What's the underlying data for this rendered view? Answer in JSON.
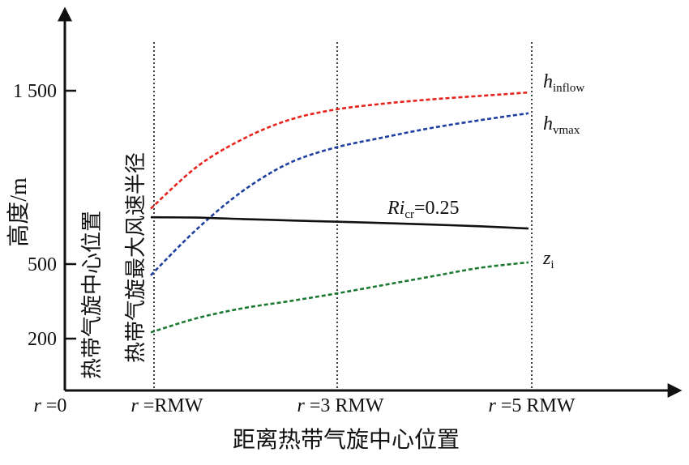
{
  "chart_data": {
    "type": "line",
    "ylabel": "高度/m",
    "xlabel": "距离热带气旋中心位置",
    "y_ticks": [
      {
        "value": 200,
        "label": "200"
      },
      {
        "value": 500,
        "label": "500"
      },
      {
        "value": 1500,
        "label": "1 500"
      }
    ],
    "y_scale": "piecewise",
    "ylim": [
      0,
      2350
    ],
    "x_ticks": [
      {
        "x": 0,
        "label_italic": "r",
        "label_rest": " =0"
      },
      {
        "x": 1,
        "label_italic": "r",
        "label_rest": " =RMW"
      },
      {
        "x": 3,
        "label_italic": "r",
        "label_rest": " =3 RMW"
      },
      {
        "x": 5,
        "label_italic": "r",
        "label_rest": " =5 RMW"
      }
    ],
    "reference_lines": [
      {
        "x": 1,
        "style": "dotted"
      },
      {
        "x": 3,
        "style": "dotted"
      },
      {
        "x": 5,
        "style": "dotted"
      }
    ],
    "vertical_labels": [
      {
        "x": 0,
        "text": "热带气旋中心位置"
      },
      {
        "x": 1,
        "text": "热带气旋最大风速半径"
      }
    ],
    "series": [
      {
        "name": "h_inflow",
        "label_main": "h",
        "label_sub": "inflow",
        "color": "#e8221c",
        "style": "dashed",
        "points": [
          [
            1.0,
            820
          ],
          [
            1.5,
            1060
          ],
          [
            2.0,
            1220
          ],
          [
            2.5,
            1330
          ],
          [
            3.0,
            1390
          ],
          [
            3.5,
            1425
          ],
          [
            4.0,
            1450
          ],
          [
            4.5,
            1470
          ],
          [
            5.0,
            1490
          ]
        ]
      },
      {
        "name": "h_vmax",
        "label_main": "h",
        "label_sub": "vmax",
        "color": "#1c3fa0",
        "style": "dashed",
        "points": [
          [
            1.0,
            455
          ],
          [
            1.5,
            700
          ],
          [
            2.0,
            920
          ],
          [
            2.5,
            1080
          ],
          [
            3.0,
            1170
          ],
          [
            3.5,
            1230
          ],
          [
            4.0,
            1285
          ],
          [
            4.5,
            1330
          ],
          [
            5.0,
            1370
          ]
        ]
      },
      {
        "name": "Ri_cr",
        "label_main": "Ri",
        "label_sub": "cr",
        "label_tail": "=0.25",
        "color": "#111111",
        "style": "solid",
        "points": [
          [
            1.0,
            770
          ],
          [
            1.5,
            768
          ],
          [
            2.0,
            760
          ],
          [
            2.5,
            752
          ],
          [
            3.0,
            745
          ],
          [
            3.5,
            737
          ],
          [
            4.0,
            728
          ],
          [
            4.5,
            718
          ],
          [
            5.0,
            705
          ]
        ]
      },
      {
        "name": "z_i",
        "label_main": "z",
        "label_sub": "i",
        "color": "#1a7a32",
        "style": "dashed",
        "points": [
          [
            1.0,
            225
          ],
          [
            1.5,
            282
          ],
          [
            2.0,
            322
          ],
          [
            2.5,
            350
          ],
          [
            3.0,
            380
          ],
          [
            3.5,
            415
          ],
          [
            4.0,
            450
          ],
          [
            4.5,
            485
          ],
          [
            5.0,
            510
          ]
        ]
      }
    ]
  }
}
